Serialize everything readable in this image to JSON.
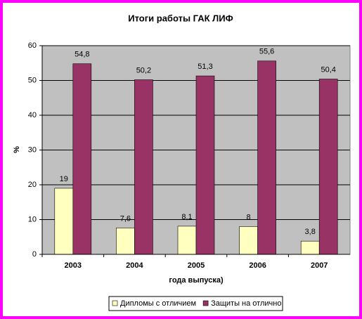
{
  "chart_data": {
    "type": "bar",
    "title": "Итоги работы ГАК ЛИФ",
    "x_label": "года выпуска)",
    "y_label": "%",
    "categories": [
      "2003",
      "2004",
      "2005",
      "2006",
      "2007"
    ],
    "series": [
      {
        "name": "Дипломы с отличием",
        "color": "#ffffc0",
        "values": [
          19,
          7.6,
          8.1,
          8,
          3.8
        ],
        "value_labels": [
          "19",
          "7,6",
          "8,1",
          "8",
          "3,8"
        ]
      },
      {
        "name": "Защиты на отлично",
        "color": "#993366",
        "values": [
          54.8,
          50.2,
          51.3,
          55.6,
          50.4
        ],
        "value_labels": [
          "54,8",
          "50,2",
          "51,3",
          "55,6",
          "50,4"
        ]
      }
    ],
    "ylim": [
      0,
      60
    ],
    "yticks": [
      0,
      10,
      20,
      30,
      40,
      50,
      60
    ],
    "grid": true,
    "legend": "bottom",
    "plot_background": "#c0c0c0"
  }
}
